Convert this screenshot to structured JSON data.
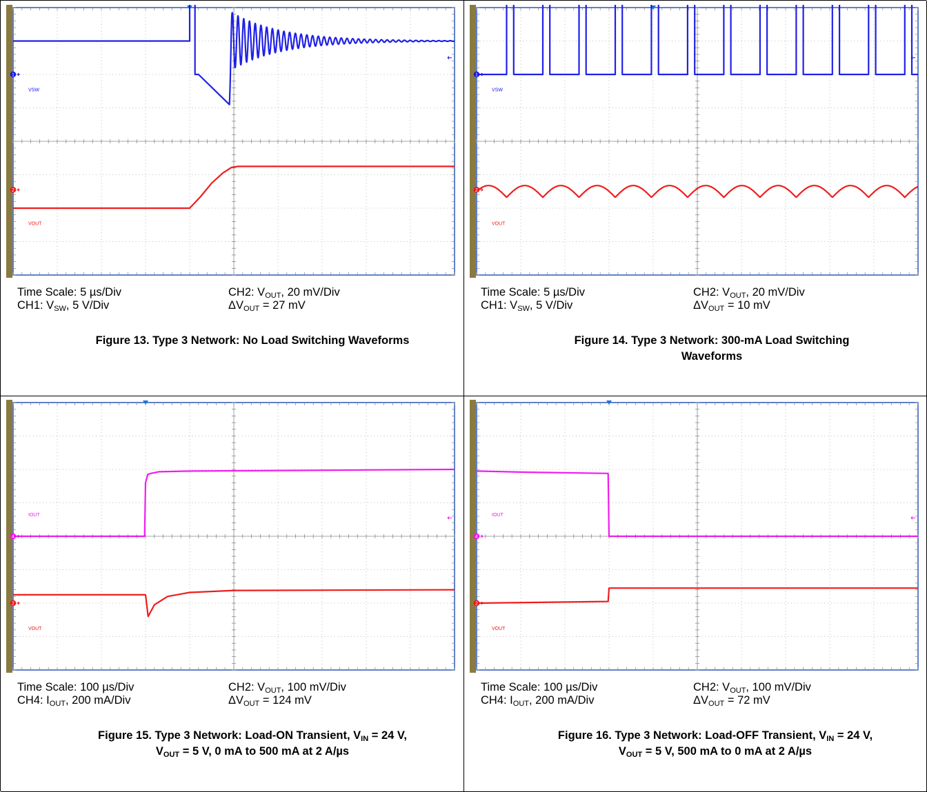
{
  "colors": {
    "ch1": "#1414e6",
    "ch2": "#ee1111",
    "ch4": "#ee11ee",
    "grid": "#a8a8a8",
    "frame": "#2a57b8",
    "bezel": "#8a7a40",
    "marker": "#1a73d9"
  },
  "figures": [
    {
      "caption": {
        "left1_pre": "Time Scale: 5 µs/Div",
        "left2_pre": "CH1: V",
        "left2_sub": "SW",
        "left2_post": ", 5 V/Div",
        "right1_pre": "CH2: V",
        "right1_sub": "OUT",
        "right1_post": ", 20 mV/Div",
        "right2_pre": "ΔV",
        "right2_sub": "OUT",
        "right2_post": " = 27 mV"
      },
      "title": {
        "line1_pre": "Figure 13. Type 3 Network: No Load Switching Waveforms",
        "line1_sub": "",
        "line1_post": "",
        "line2_pre": "",
        "line2_sub": "",
        "line2_post": ""
      }
    },
    {
      "caption": {
        "left1_pre": "Time Scale: 5 µs/Div",
        "left2_pre": "CH1: V",
        "left2_sub": "SW",
        "left2_post": ", 5 V/Div",
        "right1_pre": "CH2: V",
        "right1_sub": "OUT",
        "right1_post": ", 20 mV/Div",
        "right2_pre": "ΔV",
        "right2_sub": "OUT",
        "right2_post": " = 10 mV"
      },
      "title": {
        "line1_pre": "Figure 14. Type 3 Network: 300-mA Load Switching",
        "line1_sub": "",
        "line1_post": "",
        "line2_pre": "Waveforms",
        "line2_sub": "",
        "line2_post": ""
      }
    },
    {
      "caption": {
        "left1_pre": "Time Scale: 100 µs/Div",
        "left2_pre": "CH4: I",
        "left2_sub": "OUT",
        "left2_post": ", 200 mA/Div",
        "right1_pre": "CH2: V",
        "right1_sub": "OUT",
        "right1_post": ", 100 mV/Div",
        "right2_pre": "ΔV",
        "right2_sub": "OUT",
        "right2_post": " = 124 mV"
      },
      "title": {
        "line1_pre": "Figure 15. Type 3 Network: Load-ON Transient, V",
        "line1_sub": "IN",
        "line1_post": " = 24 V,",
        "line2_pre": "V",
        "line2_sub": "OUT",
        "line2_post": " = 5 V, 0 mA to 500 mA at 2 A/µs"
      }
    },
    {
      "caption": {
        "left1_pre": "Time Scale: 100 µs/Div",
        "left2_pre": "CH4: I",
        "left2_sub": "OUT",
        "left2_post": ", 200 mA/Div",
        "right1_pre": "CH2: V",
        "right1_sub": "OUT",
        "right1_post": ", 100 mV/Div",
        "right2_pre": "ΔV",
        "right2_sub": "OUT",
        "right2_post": " = 72 mV"
      },
      "title": {
        "line1_pre": "Figure 16. Type 3 Network: Load-OFF Transient, V",
        "line1_sub": "IN",
        "line1_post": " = 24 V,",
        "line2_pre": "V",
        "line2_sub": "OUT",
        "line2_post": " = 5 V, 500 mA to 0 mA at 2 A/µs"
      }
    }
  ],
  "chart_data": [
    {
      "type": "line",
      "title": "Figure 13. Type 3 Network: No Load Switching Waveforms",
      "x_divisions": 10,
      "y_divisions": 8,
      "x_unit": "µs",
      "x_per_div": 5,
      "x_range_div": [
        0,
        10
      ],
      "trigger_div": 4,
      "channels": [
        {
          "id": "1",
          "name": "VSW",
          "color": "#1414e6",
          "ref_div": 6,
          "arrow_div": 6.5,
          "scale": "5 V/Div",
          "label_div": 5.5,
          "x": [
            0,
            4.0,
            4.0,
            4.12,
            4.12,
            4.18,
            4.18,
            4.2,
            4.2,
            4.9,
            10
          ],
          "y": [
            7,
            7,
            8.4,
            8.4,
            6,
            6,
            6,
            6,
            6,
            6,
            7
          ],
          "ringing": {
            "start": 4.9,
            "amplitude": 0.9,
            "period": 0.13,
            "decay": 1.1,
            "center": 7
          }
        },
        {
          "id": "2",
          "name": "VOUT",
          "color": "#ee1111",
          "ref_div": 2.55,
          "scale": "20 mV/Div",
          "label_div": 1.5,
          "x": [
            0,
            4.0,
            4.25,
            4.5,
            4.75,
            4.95,
            5.1,
            10
          ],
          "y": [
            2.0,
            2.0,
            2.35,
            2.75,
            3.05,
            3.22,
            3.25,
            3.25
          ]
        }
      ],
      "delta_v": "27 mV"
    },
    {
      "type": "line",
      "title": "Figure 14. Type 3 Network: 300-mA Load Switching Waveforms",
      "x_divisions": 10,
      "y_divisions": 8,
      "x_unit": "µs",
      "x_per_div": 5,
      "x_range_div": [
        0,
        10
      ],
      "trigger_div": 4,
      "channels": [
        {
          "id": "1",
          "name": "VSW",
          "color": "#1414e6",
          "ref_div": 6,
          "arrow_div": 6.5,
          "scale": "5 V/Div",
          "label_div": 5.5,
          "pulse_train": {
            "first_rise": 0.68,
            "period": 0.82,
            "width": 0.16,
            "high": 8.4,
            "low": 6.0
          }
        },
        {
          "id": "2",
          "name": "VOUT",
          "color": "#ee1111",
          "ref_div": 2.55,
          "scale": "20 mV/Div",
          "label_div": 1.5,
          "ripple": {
            "period": 0.82,
            "center": 2.5,
            "amplitude": 0.22,
            "phase_div": 0.68
          }
        }
      ],
      "delta_v": "10 mV"
    },
    {
      "type": "line",
      "title": "Figure 15. Type 3 Network: Load-ON Transient, VIN = 24 V, VOUT = 5 V, 0 mA to 500 mA at 2 A/µs",
      "x_divisions": 10,
      "y_divisions": 8,
      "x_unit": "µs",
      "x_per_div": 100,
      "x_range_div": [
        0,
        10
      ],
      "trigger_div": 3,
      "channels": [
        {
          "id": "4",
          "name": "IOUT",
          "color": "#ee11ee",
          "ref_div": 4,
          "arrow_div": 4.55,
          "scale": "200 mA/Div",
          "label_div": 4.6,
          "x": [
            0,
            2.98,
            3.0,
            3.05,
            3.12,
            3.3,
            4.0,
            10
          ],
          "y": [
            4.0,
            4.0,
            5.6,
            5.85,
            5.88,
            5.93,
            5.95,
            6.0
          ]
        },
        {
          "id": "2",
          "name": "VOUT",
          "color": "#ee1111",
          "ref_div": 2.0,
          "scale": "100 mV/Div",
          "label_div": 1.2,
          "x": [
            0,
            3.0,
            3.06,
            3.2,
            3.5,
            4.0,
            5.0,
            10
          ],
          "y": [
            2.25,
            2.25,
            1.6,
            1.95,
            2.2,
            2.32,
            2.38,
            2.4
          ]
        }
      ],
      "delta_v": "124 mV"
    },
    {
      "type": "line",
      "title": "Figure 16. Type 3 Network: Load-OFF Transient, VIN = 24 V, VOUT = 5 V, 500 mA to 0 mA at 2 A/µs",
      "x_divisions": 10,
      "y_divisions": 8,
      "x_unit": "µs",
      "x_per_div": 100,
      "x_range_div": [
        0,
        10
      ],
      "trigger_div": 3,
      "channels": [
        {
          "id": "4",
          "name": "IOUT",
          "color": "#ee11ee",
          "ref_div": 4,
          "arrow_div": 4.55,
          "scale": "200 mA/Div",
          "label_div": 4.6,
          "x": [
            0,
            1.0,
            2.98,
            3.0,
            10
          ],
          "y": [
            5.95,
            5.92,
            5.88,
            4.0,
            4.0
          ]
        },
        {
          "id": "2",
          "name": "VOUT",
          "color": "#ee1111",
          "ref_div": 2.0,
          "scale": "100 mV/Div",
          "label_div": 1.2,
          "x": [
            0,
            2.98,
            3.0,
            3.05,
            10
          ],
          "y": [
            2.0,
            2.05,
            2.45,
            2.45,
            2.45
          ]
        }
      ],
      "delta_v": "72 mV"
    }
  ]
}
